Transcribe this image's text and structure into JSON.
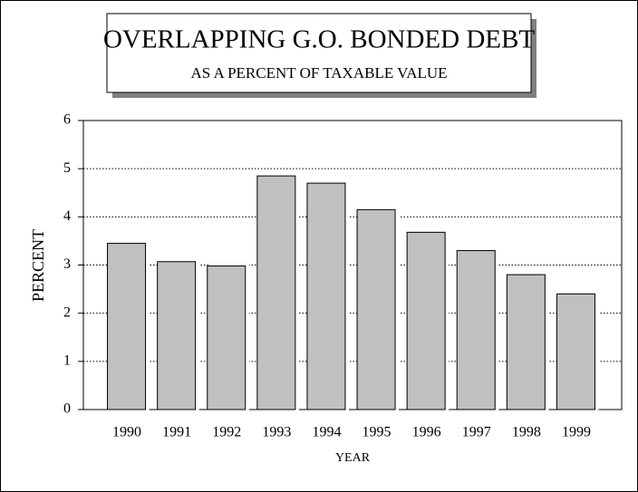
{
  "chart_data": {
    "type": "bar",
    "title": "OVERLAPPING G.O. BONDED DEBT",
    "subtitle": "AS A PERCENT OF TAXABLE VALUE",
    "x_label": "YEAR",
    "y_label": "PERCENT",
    "categories": [
      "1990",
      "1991",
      "1992",
      "1993",
      "1994",
      "1995",
      "1996",
      "1997",
      "1998",
      "1999"
    ],
    "values": [
      3.45,
      3.07,
      2.98,
      4.85,
      4.7,
      4.15,
      3.68,
      3.3,
      2.8,
      2.4
    ],
    "color": "#c0c0c0",
    "ylim": [
      0,
      6
    ],
    "yticks": [
      0,
      1,
      2,
      3,
      4,
      5,
      6
    ],
    "grid": true
  }
}
